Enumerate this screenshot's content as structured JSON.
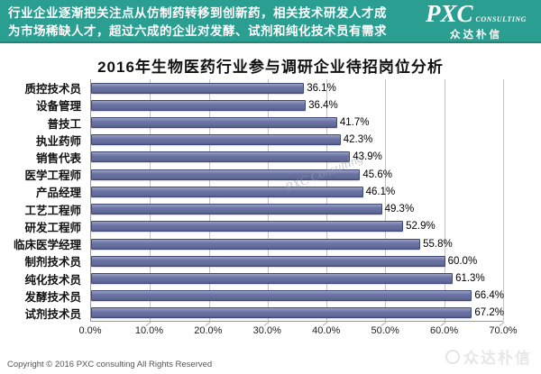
{
  "header": {
    "line1": "行业企业逐渐把关注点从仿制药转移到创新药，相关技术研发人才成",
    "line2": "为市场稀缺人才，超过六成的企业对发酵、试剂和纯化技术员有需求",
    "bg_color": "#2b9e92",
    "logo": {
      "main": "PXC",
      "sub": "CONSULTING",
      "cn": "众达朴信"
    }
  },
  "title": "2016年生物医药行业参与调研企业待招岗位分析",
  "chart_data": {
    "type": "bar",
    "orientation": "horizontal",
    "title": "2016年生物医药行业参与调研企业待招岗位分析",
    "categories": [
      "质控技术员",
      "设备管理",
      "普技工",
      "执业药师",
      "销售代表",
      "医学工程师",
      "产品经理",
      "工艺工程师",
      "研发工程师",
      "临床医学经理",
      "制剂技术员",
      "纯化技术员",
      "发酵技术员",
      "试剂技术员"
    ],
    "values": [
      36.1,
      36.4,
      41.7,
      42.3,
      43.9,
      45.6,
      46.1,
      49.3,
      52.9,
      55.8,
      60.0,
      61.3,
      66.4,
      67.2
    ],
    "value_labels": [
      "36.1%",
      "36.4%",
      "41.7%",
      "42.3%",
      "43.9%",
      "45.6%",
      "46.1%",
      "49.3%",
      "52.9%",
      "55.8%",
      "60.0%",
      "61.3%",
      "66.4%",
      "67.2%"
    ],
    "xlabel": "",
    "ylabel": "",
    "xlim": [
      0,
      70
    ],
    "x_ticks": [
      "0.0%",
      "10.0%",
      "20.0%",
      "30.0%",
      "40.0%",
      "50.0%",
      "60.0%",
      "70.0%"
    ],
    "grid": true,
    "legend": false,
    "bar_color": "#6a73a3",
    "gridline_color": "#c3c3c3"
  },
  "watermarks": {
    "center": "PXC Consulting",
    "bottom_right": "众达朴信"
  },
  "footer": {
    "copyright": "Copyright © 2016  PXC consulting All Rights Reserved"
  }
}
